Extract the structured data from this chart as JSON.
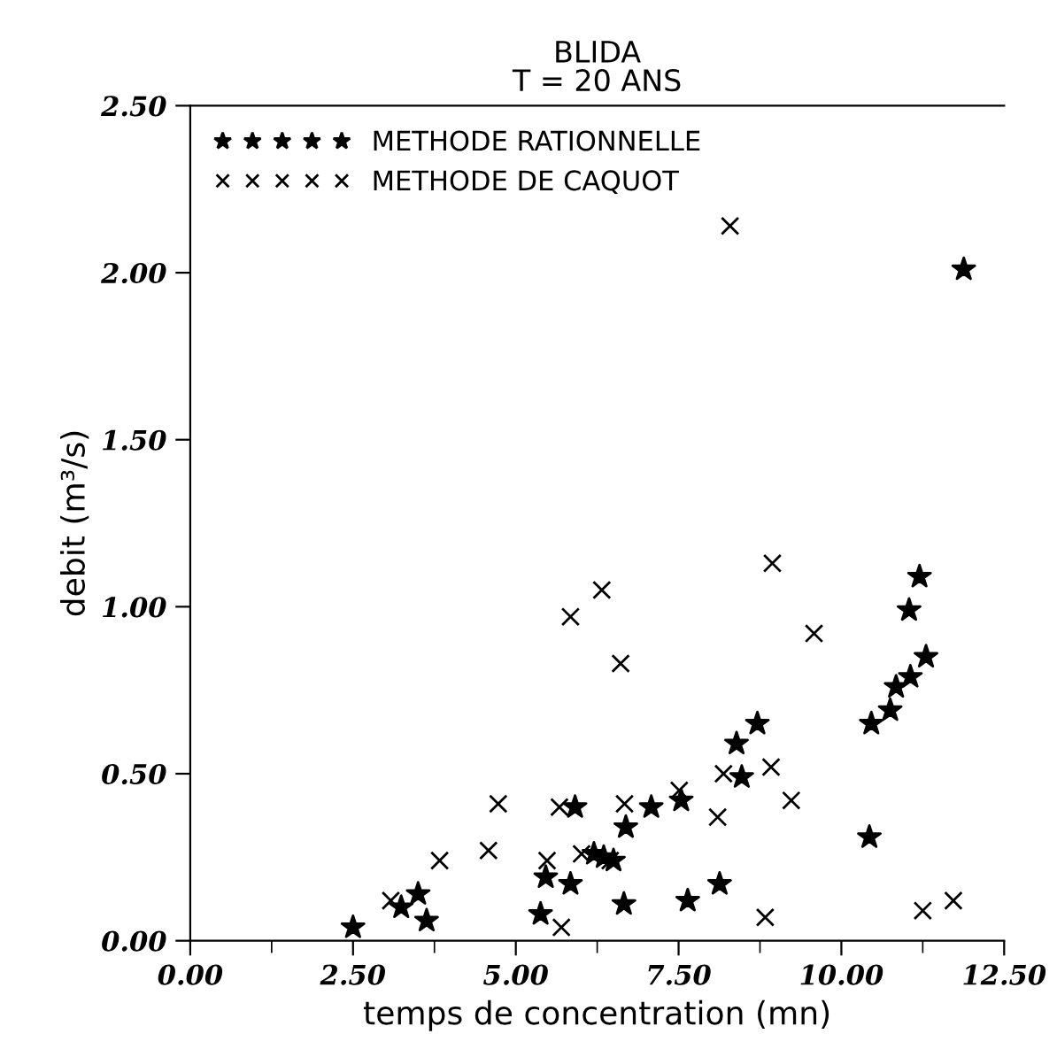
{
  "chart_data": {
    "type": "scatter",
    "title": "BLIDA\nT = 20 ANS",
    "xlabel": "temps de concentration (mn)",
    "ylabel": "debit (m³/s)",
    "xlim": [
      0,
      12.5
    ],
    "ylim": [
      0,
      2.5
    ],
    "xticks": [
      {
        "value": 0,
        "label": "0.00"
      },
      {
        "value": 1.25,
        "label": null
      },
      {
        "value": 2.5,
        "label": "2.50"
      },
      {
        "value": 3.75,
        "label": null
      },
      {
        "value": 5,
        "label": "5.00"
      },
      {
        "value": 6.25,
        "label": null
      },
      {
        "value": 7.5,
        "label": "7.50"
      },
      {
        "value": 8.75,
        "label": null
      },
      {
        "value": 10,
        "label": "10.00"
      },
      {
        "value": 11.25,
        "label": null
      },
      {
        "value": 12.5,
        "label": "12.50"
      }
    ],
    "yticks": [
      {
        "value": 0,
        "label": "0.00"
      },
      {
        "value": 0.5,
        "label": "0.50"
      },
      {
        "value": 1.0,
        "label": "1.00"
      },
      {
        "value": 1.5,
        "label": "1.50"
      },
      {
        "value": 2.0,
        "label": "2.00"
      },
      {
        "value": 2.5,
        "label": "2.50"
      }
    ],
    "grid": false,
    "legend": "top left",
    "series": [
      {
        "name": "METHODE RATIONNELLE",
        "color": "#000000",
        "marker": "star",
        "x": [
          2.5,
          3.24,
          3.5,
          3.63,
          5.38,
          5.46,
          5.84,
          5.91,
          6.2,
          6.35,
          6.5,
          6.66,
          6.69,
          7.08,
          7.54,
          7.64,
          8.13,
          8.39,
          8.47,
          8.71,
          10.43,
          10.46,
          10.75,
          10.84,
          11.06,
          11.04,
          11.2,
          11.3,
          11.88
        ],
        "values": [
          0.04,
          0.1,
          0.14,
          0.06,
          0.08,
          0.19,
          0.17,
          0.4,
          0.26,
          0.25,
          0.24,
          0.11,
          0.34,
          0.4,
          0.42,
          0.12,
          0.17,
          0.59,
          0.49,
          0.65,
          0.31,
          0.65,
          0.69,
          0.76,
          0.79,
          0.99,
          1.09,
          0.85,
          2.01
        ]
      },
      {
        "name": "METHODE DE CAQUOT",
        "color": "#000000",
        "marker": "cross",
        "x": [
          3.08,
          3.83,
          4.58,
          4.73,
          5.48,
          5.7,
          5.67,
          5.84,
          6.01,
          6.32,
          6.45,
          6.61,
          6.67,
          7.51,
          8.1,
          8.19,
          8.29,
          8.83,
          8.92,
          8.94,
          9.23,
          9.58,
          11.25,
          11.72
        ],
        "values": [
          0.12,
          0.24,
          0.27,
          0.41,
          0.24,
          0.04,
          0.4,
          0.97,
          0.26,
          1.05,
          0.24,
          0.83,
          0.41,
          0.45,
          0.37,
          0.5,
          2.14,
          0.07,
          0.52,
          1.13,
          0.42,
          0.92,
          0.09,
          0.12
        ]
      }
    ]
  }
}
